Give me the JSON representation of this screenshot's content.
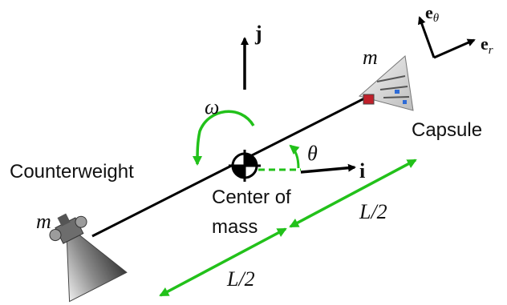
{
  "labels": {
    "unit_j": "j",
    "unit_i": "i",
    "unit_e_theta_base": "e",
    "unit_e_theta_sub": "θ",
    "unit_e_r_base": "e",
    "unit_e_r_sub": "r",
    "omega": "ω",
    "theta": "θ",
    "mass_capsule": "m",
    "mass_counterweight": "m",
    "capsule": "Capsule",
    "counterweight": "Counterweight",
    "center_of_mass_line1": "Center of",
    "center_of_mass_line2": "mass",
    "half_length_upper": "L/2",
    "half_length_lower": "L/2"
  },
  "colors": {
    "structure": "#000000",
    "dimension_arrows": "#22c11a",
    "text": "#111111"
  },
  "icons": [
    "center-of-mass-symbol",
    "rocket-engine-icon",
    "capsule-icon"
  ]
}
